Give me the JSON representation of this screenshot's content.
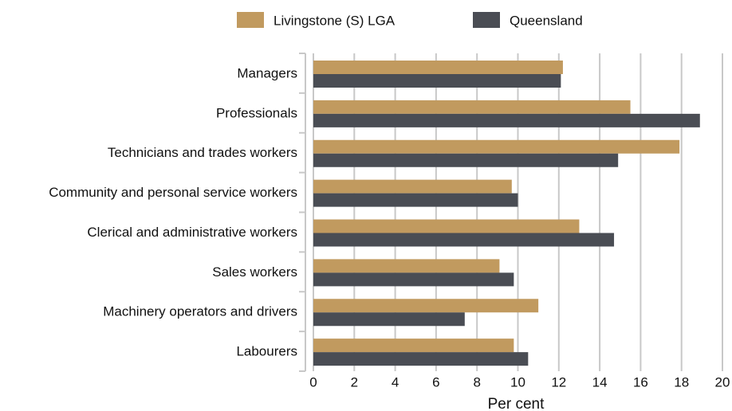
{
  "chart_data": {
    "type": "barh",
    "categories": [
      "Managers",
      "Professionals",
      "Technicians and trades workers",
      "Community and personal service workers",
      "Clerical and administrative workers",
      "Sales workers",
      "Machinery operators and drivers",
      "Labourers"
    ],
    "series": [
      {
        "name": "Livingstone (S) LGA",
        "color": "#c19a5f",
        "values": [
          12.2,
          15.5,
          17.9,
          9.7,
          13.0,
          9.1,
          11.0,
          9.8
        ]
      },
      {
        "name": "Queensland",
        "color": "#4a4d54",
        "values": [
          12.1,
          18.9,
          14.9,
          10.0,
          14.7,
          9.8,
          7.4,
          10.5
        ]
      }
    ],
    "xlabel": "Per cent",
    "xlim": [
      0,
      20
    ],
    "xticks": [
      0,
      2,
      4,
      6,
      8,
      10,
      12,
      14,
      16,
      18,
      20
    ],
    "grid": true
  }
}
